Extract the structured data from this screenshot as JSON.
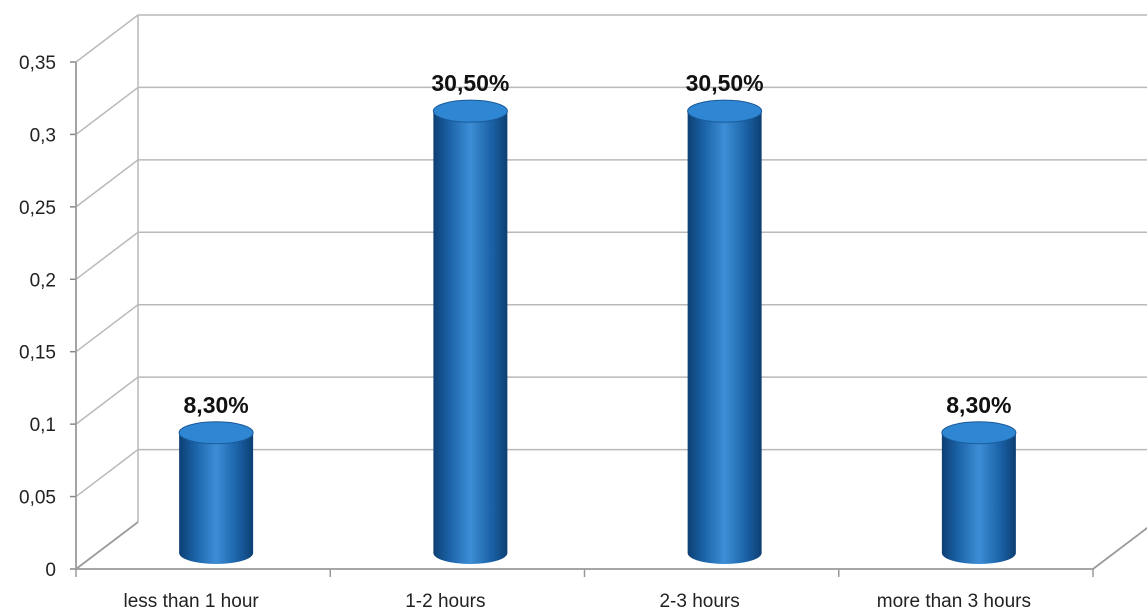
{
  "chart_data": {
    "type": "bar",
    "style": "3d-cylinder",
    "categories": [
      "less than 1 hour",
      "1-2 hours",
      "2-3 hours",
      "more than 3 hours"
    ],
    "values": [
      0.083,
      0.305,
      0.305,
      0.083
    ],
    "data_labels": [
      "8,30%",
      "30,50%",
      "30,50%",
      "8,30%"
    ],
    "y_ticks": [
      "0",
      "0,05",
      "0,1",
      "0,15",
      "0,2",
      "0,25",
      "0,3",
      "0,35"
    ],
    "ylim": [
      0,
      0.35
    ],
    "title": "",
    "xlabel": "",
    "ylabel": "",
    "grid": true,
    "legend": "none",
    "colors": {
      "bar": "#1f6fb8",
      "bar_top": "#2f86d2",
      "grid": "#b9b9b9"
    }
  }
}
